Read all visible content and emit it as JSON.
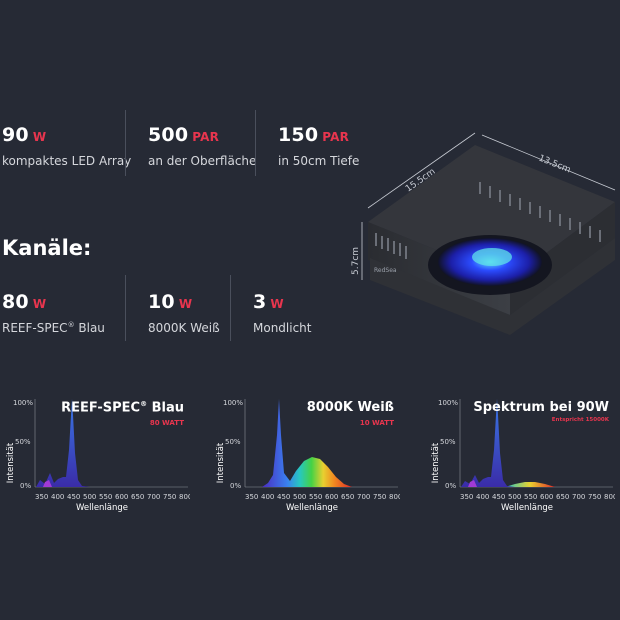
{
  "colors": {
    "accent": "#e8354e",
    "background": "#262a35",
    "text": "#ffffff",
    "muted": "#d5d7dc"
  },
  "stats_top": [
    {
      "value": "90",
      "unit": "W",
      "desc": "kompaktes LED Array"
    },
    {
      "value": "500",
      "unit": "PAR",
      "desc": "an der Oberfläche"
    },
    {
      "value": "150",
      "unit": "PAR",
      "desc": "in 50cm Tiefe"
    }
  ],
  "channels_heading": "Kanäle:",
  "channels": [
    {
      "value": "80",
      "unit": "W",
      "desc": "REEF-SPEC",
      "desc_mark": "®",
      "desc_tail": " Blau"
    },
    {
      "value": "10",
      "unit": "W",
      "desc": "8000K Weiß"
    },
    {
      "value": "3",
      "unit": "W",
      "desc": "Mondlicht"
    }
  ],
  "dimensions": {
    "width": "15.5cm",
    "length": "13.5cm",
    "height": "5.7cm"
  },
  "spectra": [
    {
      "title": "REEF-SPEC",
      "title_mark": "®",
      "title_tail": " Blau",
      "subtitle": "80 WATT"
    },
    {
      "title": "8000K Weiß",
      "subtitle": "10 WATT"
    },
    {
      "title": "Spektrum bei 90W",
      "subtitle": "Entspricht 15000K"
    }
  ],
  "axis": {
    "ylabel": "Intensität",
    "xlabel": "Wellenlänge",
    "yticks": [
      "100%",
      "50%",
      "0%"
    ],
    "xticks": [
      "350",
      "400",
      "450",
      "500",
      "550",
      "600",
      "650",
      "700",
      "750",
      "800"
    ]
  }
}
